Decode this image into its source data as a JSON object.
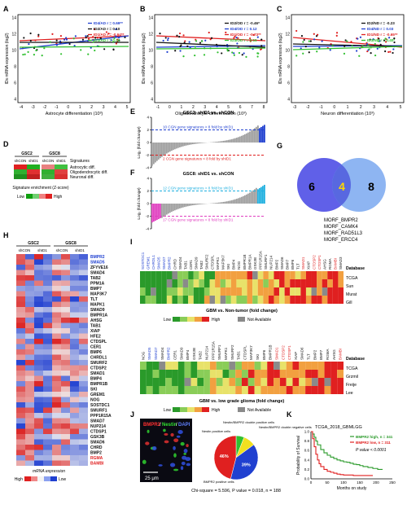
{
  "panel_letters": [
    "A",
    "B",
    "C",
    "D",
    "E",
    "F",
    "G",
    "H",
    "I",
    "J",
    "K"
  ],
  "colors": {
    "red": "#e02020",
    "blue": "#2040d0",
    "green": "#30c030",
    "black": "#111111",
    "teal": "#1a8a8a",
    "magenta": "#e040c0",
    "cyan": "#20b0e0",
    "venn_left": "#6060e8",
    "venn_right": "#7aa8f0",
    "overlap": "#ffd700"
  },
  "scatter_panels": [
    {
      "id": "A",
      "xlabel": "Astrocyte differentiation (10³)",
      "ylabel": "IDs mRNA expression (log2)",
      "yticks": [
        "14",
        "12",
        "10",
        "8",
        "6",
        "4"
      ],
      "xticks": [
        "-4",
        "-3",
        "-2",
        "-1",
        "0",
        "1",
        "2",
        "3",
        "4",
        "5"
      ],
      "legend": [
        {
          "label": "ID4/AD r = 0.69**",
          "color": "blue"
        },
        {
          "label": "ID2/AD r = 0.10",
          "color": "black"
        },
        {
          "label": "ID1/AD r = -0.64**",
          "color": "red"
        },
        {
          "label": "ID3/AD r = 0.04",
          "color": "green"
        }
      ]
    },
    {
      "id": "B",
      "xlabel": "Oligodendrocyte differentiation (10³)",
      "ylabel": "IDs mRNA expression (log2)",
      "yticks": [
        "14",
        "12",
        "10",
        "8",
        "6",
        "4"
      ],
      "xticks": [
        "-1",
        "0",
        "1",
        "2",
        "3",
        "4",
        "5",
        "6",
        "7",
        "8"
      ],
      "legend": [
        {
          "label": "ID2/OD r = -0.46*",
          "color": "black"
        },
        {
          "label": "ID4/OD r = 0.12",
          "color": "blue"
        },
        {
          "label": "ID1/OD r = -0.73**",
          "color": "red"
        },
        {
          "label": "ID3/OD r = 0.15",
          "color": "green"
        }
      ]
    },
    {
      "id": "C",
      "xlabel": "Neuron differentiation (10³)",
      "ylabel": "IDs mRNA expression (log2)",
      "yticks": [
        "14",
        "12",
        "10",
        "8",
        "6",
        "4"
      ],
      "xticks": [
        "-3",
        "-2",
        "-1",
        "0",
        "1",
        "2",
        "3",
        "4",
        "5"
      ],
      "legend": [
        {
          "label": "ID2/ND r = -0.23",
          "color": "black"
        },
        {
          "label": "ID4/ND r = 0.03",
          "color": "blue"
        },
        {
          "label": "ID1/ND r = -0.65**",
          "color": "red"
        },
        {
          "label": "ID3/ND r = 0.40*",
          "color": "green"
        }
      ]
    }
  ],
  "panel_D": {
    "group_labels": [
      "GSC2",
      "GSC8"
    ],
    "col_labels": [
      "shCON",
      "shID1",
      "shCON",
      "shID1"
    ],
    "row_labels": [
      "Signatures",
      "Astrocytic diff.",
      "Oligodendrocytic diff.",
      "Neuronal diff."
    ],
    "legend_title": "Signature enrichment (Z-score)",
    "legend_low": "Low",
    "legend_high": "High"
  },
  "panel_E": {
    "title": "GSC2: shID1 vs. shCON",
    "ylabel": "Log₂ (fold change)",
    "yticks": [
      "4",
      "2",
      "0",
      "-2",
      "-4"
    ],
    "up_label": "10 CGN gene signatures > 8 fold by shID1",
    "down_label": "2 CGN gene signatures < 8 fold by shID1"
  },
  "panel_F": {
    "title": "GSC8: shID1 vs. shCON",
    "ylabel": "Log₂ (fold change)",
    "yticks": [
      "4",
      "2",
      "0",
      "-2",
      "-4"
    ],
    "up_label": "12 CGN gene signatures > 8 fold by shID1",
    "down_label": "17 CGN gene signatures < 8 fold by shID1"
  },
  "panel_G": {
    "left": "6",
    "overlap": "4",
    "right": "8",
    "genes": [
      "MORF_BMPR2",
      "MORF_CAMK4",
      "MORF_RAD51L3",
      "MORF_ERCC4"
    ]
  },
  "panel_H": {
    "group_labels": [
      "GSC2",
      "GSC8"
    ],
    "col_labels": [
      "shCON",
      "shID1",
      "shCON",
      "shID1"
    ],
    "genes": [
      {
        "name": "BMPR2",
        "color": "blue"
      },
      {
        "name": "SMAD5",
        "color": "blue"
      },
      {
        "name": "ZFYVE16",
        "color": "black"
      },
      {
        "name": "SMAD4",
        "color": "black"
      },
      {
        "name": "TAB2",
        "color": "black"
      },
      {
        "name": "PPM1A",
        "color": "black"
      },
      {
        "name": "BMP7",
        "color": "black"
      },
      {
        "name": "MAP3K7",
        "color": "black"
      },
      {
        "name": "TLT",
        "color": "black"
      },
      {
        "name": "MAPK1",
        "color": "black"
      },
      {
        "name": "SMAD9",
        "color": "black"
      },
      {
        "name": "BMPR1A",
        "color": "black"
      },
      {
        "name": "AHSG",
        "color": "black"
      },
      {
        "name": "TAB1",
        "color": "black"
      },
      {
        "name": "XIAP",
        "color": "black"
      },
      {
        "name": "HFE2",
        "color": "black"
      },
      {
        "name": "CTDSPL",
        "color": "black"
      },
      {
        "name": "CER1",
        "color": "black"
      },
      {
        "name": "BMP6",
        "color": "black"
      },
      {
        "name": "CHRDL1",
        "color": "black"
      },
      {
        "name": "SMURF2",
        "color": "black"
      },
      {
        "name": "CTDSP2",
        "color": "black"
      },
      {
        "name": "SMAD1",
        "color": "black"
      },
      {
        "name": "BMP4",
        "color": "black"
      },
      {
        "name": "BMPR1B",
        "color": "black"
      },
      {
        "name": "SKI",
        "color": "black"
      },
      {
        "name": "GREM1",
        "color": "black"
      },
      {
        "name": "NOG",
        "color": "black"
      },
      {
        "name": "SOSTDC1",
        "color": "black"
      },
      {
        "name": "SMURF1",
        "color": "black"
      },
      {
        "name": "PPP1R15A",
        "color": "black"
      },
      {
        "name": "SMAD7",
        "color": "black"
      },
      {
        "name": "NUP214",
        "color": "black"
      },
      {
        "name": "CTDSP1",
        "color": "black"
      },
      {
        "name": "GSK3B",
        "color": "black"
      },
      {
        "name": "SMAD6",
        "color": "black"
      },
      {
        "name": "CHRD",
        "color": "black"
      },
      {
        "name": "BMP2",
        "color": "black"
      },
      {
        "name": "RGMA",
        "color": "red"
      },
      {
        "name": "BAMBI",
        "color": "red"
      }
    ],
    "legend_title": "mRNA expression",
    "legend_high": "High",
    "legend_low": "Low"
  },
  "panel_I": {
    "top_genes": [
      "SOSTDC1",
      "GREM1",
      "CHRDL1",
      "SMAD5",
      "SMAD7",
      "BMPR2",
      "CHRD",
      "SMAD4",
      "TAB1",
      "CER1",
      "SMAD9",
      "TAB2",
      "SMURF2",
      "CTDSPL",
      "MAPK1",
      "MAP3K7",
      "SKI",
      "BMP4",
      "NOG",
      "BMPR1B",
      "BMPR1A",
      "GSK3B",
      "PPP1R15A",
      "SMURF1",
      "NUP214",
      "BMP2",
      "SMAD6",
      "BMP7",
      "BMP6",
      "TLT",
      "SMAD1",
      "XIAP",
      "CTDSP2",
      "CTDSP1",
      "AHSG",
      "RGMA",
      "BAMBI",
      "SMAD3"
    ],
    "top_red": [
      "SMAD1",
      "CTDSP2",
      "CTDSP1",
      "BAMBI"
    ],
    "top_blue": [
      "SOSTDC1",
      "GREM1",
      "CHRDL1",
      "SMAD5",
      "SMAD7",
      "BMPR2"
    ],
    "top_rows": [
      "Database",
      "TCGA",
      "Sun",
      "Murat",
      "Gill"
    ],
    "top_caption": "GBM vs. Non-tumor (fold change)",
    "bottom_genes": [
      "NOG",
      "SMAD5",
      "SMAD7",
      "SMAD4",
      "BMPR2",
      "CER1",
      "SMAD9",
      "BMP4",
      "GSK3B",
      "TAB2",
      "NUP214",
      "PPP1R15A",
      "SMURF1",
      "MAPK1",
      "SMURF2",
      "TAB1",
      "CTDSPL",
      "MAP3K7",
      "SKI",
      "BMP6",
      "BMPR1B",
      "SMAD1",
      "CTDSP2",
      "CTDSP1",
      "XIAP",
      "SMAD6",
      "TLT",
      "BMP2",
      "BMP7",
      "RGMA",
      "AHSG",
      "BAMBI"
    ],
    "bottom_red": [
      "SMAD1",
      "CTDSP2",
      "CTDSP1",
      "BAMBI"
    ],
    "bottom_blue": [
      "SMAD5",
      "SMAD7",
      "BMPR2"
    ],
    "bottom_rows": [
      "Database",
      "TCGA",
      "Grzmil",
      "Freije",
      "Lee"
    ],
    "bottom_caption": "GBM vs. low grade glioma (fold change)",
    "legend_low": "Low",
    "legend_high": "High",
    "legend_na": "Not Available"
  },
  "panel_J": {
    "stain_title": [
      "BMPR2",
      "Nestin",
      "DAPI"
    ],
    "scale_label": "25 μm",
    "pie_labels": [
      "Nestin positive cells",
      "Nestin/BMPR2 double positive cells",
      "Nestin/BMPR2 double negative cells",
      "BMPR2 positive cells"
    ],
    "stat": "Chi-square = 5.596, P value = 0.018, n = 188"
  },
  "chart_data": [
    {
      "type": "pie",
      "panel": "J",
      "categories": [
        "Nestin positive cells",
        "Nestin/BMPR2 double positive cells",
        "Nestin/BMPR2 double negative cells",
        "BMPR2 positive cells"
      ],
      "values": [
        6,
        9,
        39,
        46
      ],
      "value_labels": [
        "",
        "",
        "39%",
        "46%"
      ],
      "colors": [
        "#30c030",
        "#f0e020",
        "#2040d0",
        "#e02020"
      ]
    },
    {
      "type": "line",
      "panel": "K",
      "title": "TCGA_2018_GBMLGG",
      "xlabel": "Months on study",
      "ylabel": "Probability of Survival",
      "xlim": [
        0,
        250
      ],
      "ylim": [
        0,
        1
      ],
      "xticks": [
        "0",
        "50",
        "100",
        "150",
        "200",
        "250"
      ],
      "yticks": [
        "1.0",
        "0.8",
        "0.6",
        "0.4",
        "0.2",
        "0.0"
      ],
      "series": [
        {
          "name": "BMPR2 high, n = 341",
          "color": "#2a9a2a",
          "x": [
            0,
            5,
            10,
            15,
            20,
            30,
            40,
            50,
            60,
            70,
            80,
            90,
            100,
            110,
            120,
            130,
            140,
            150,
            160,
            175,
            190,
            205,
            220
          ],
          "y": [
            1.0,
            0.95,
            0.88,
            0.8,
            0.72,
            0.62,
            0.55,
            0.5,
            0.46,
            0.43,
            0.4,
            0.38,
            0.36,
            0.35,
            0.33,
            0.31,
            0.3,
            0.28,
            0.26,
            0.24,
            0.22,
            0.2,
            0.2
          ]
        },
        {
          "name": "BMPR2 low, n = 311",
          "color": "#e02020",
          "x": [
            0,
            5,
            10,
            15,
            20,
            25,
            30,
            40,
            50,
            60,
            70,
            80,
            90,
            100,
            110,
            130,
            150,
            170,
            190
          ],
          "y": [
            1.0,
            0.85,
            0.68,
            0.52,
            0.4,
            0.32,
            0.26,
            0.2,
            0.16,
            0.14,
            0.12,
            0.1,
            0.09,
            0.08,
            0.08,
            0.07,
            0.07,
            0.07,
            0.07
          ]
        }
      ],
      "annotation": "P value < 0.0001"
    }
  ]
}
